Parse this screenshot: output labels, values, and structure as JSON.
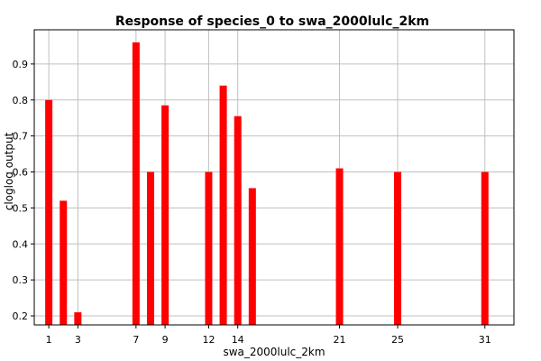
{
  "chart_data": {
    "type": "bar",
    "title": "Response of species_0 to swa_2000lulc_2km",
    "xlabel": "swa_2000lulc_2km",
    "ylabel": "cloglog output",
    "x": [
      1,
      2,
      3,
      7,
      8,
      9,
      12,
      13,
      14,
      15,
      21,
      25,
      31
    ],
    "values": [
      0.8,
      0.52,
      0.21,
      0.96,
      0.6,
      0.785,
      0.6,
      0.84,
      0.755,
      0.555,
      0.61,
      0.6,
      0.6
    ],
    "xticks": [
      1,
      3,
      7,
      9,
      12,
      14,
      21,
      25,
      31
    ],
    "yticks": [
      "0.2",
      "0.3",
      "0.4",
      "0.5",
      "0.6",
      "0.7",
      "0.8",
      "0.9"
    ],
    "xlim": [
      0,
      33
    ],
    "ylim": [
      0.175,
      0.995
    ],
    "grid": true,
    "bar_color": "#ff0000",
    "grid_color": "#c0c0c0"
  }
}
